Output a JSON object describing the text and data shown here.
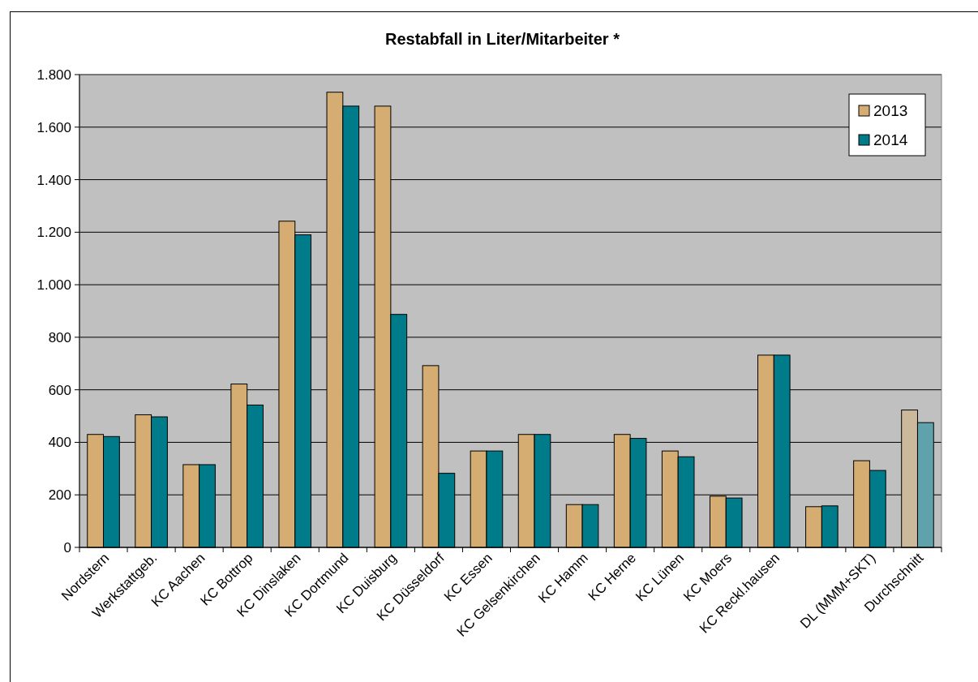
{
  "chart_data": {
    "type": "bar",
    "title": "Restabfall in Liter/Mitarbeiter *",
    "categories": [
      "Nordstern",
      "Werkstattgeb.",
      "KC Aachen",
      "KC Bottrop",
      "KC Dinslaken",
      "KC Dortmund",
      "KC Duisburg",
      "KC Düsseldorf",
      "KC Essen",
      "KC Gelsenkirchen",
      "KC Hamm",
      "KC Herne",
      "KC Lünen",
      "KC Moers",
      "KC Reckl.hausen",
      null,
      "DL (MMM+SKT)",
      "Durchschnitt"
    ],
    "series": [
      {
        "name": "2013",
        "color": "#d5ad72",
        "colors": [
          "#d5ad72",
          "#d5ad72",
          "#d5ad72",
          "#d5ad72",
          "#d5ad72",
          "#d5ad72",
          "#d5ad72",
          "#d5ad72",
          "#d5ad72",
          "#d5ad72",
          "#d5ad72",
          "#d5ad72",
          "#d5ad72",
          "#d5ad72",
          "#d5ad72",
          "#d5ad72",
          "#d5ad72",
          "#cbb99b"
        ],
        "values": [
          430,
          505,
          315,
          622,
          1242,
          1733,
          1680,
          692,
          367,
          430,
          163,
          430,
          367,
          195,
          732,
          155,
          330,
          523
        ]
      },
      {
        "name": "2014",
        "color": "#007b8a",
        "colors": [
          "#007b8a",
          "#007b8a",
          "#007b8a",
          "#007b8a",
          "#007b8a",
          "#007b8a",
          "#007b8a",
          "#007b8a",
          "#007b8a",
          "#007b8a",
          "#007b8a",
          "#007b8a",
          "#007b8a",
          "#007b8a",
          "#007b8a",
          "#007b8a",
          "#007b8a",
          "#5fa2ab"
        ],
        "values": [
          422,
          497,
          315,
          542,
          1190,
          1680,
          887,
          282,
          367,
          430,
          163,
          415,
          345,
          188,
          732,
          158,
          293,
          475
        ]
      }
    ],
    "ylim": [
      0,
      1800
    ],
    "yticks": [
      {
        "value": 0,
        "label": "0"
      },
      {
        "value": 200,
        "label": "200"
      },
      {
        "value": 400,
        "label": "400"
      },
      {
        "value": 600,
        "label": "600"
      },
      {
        "value": 800,
        "label": "800"
      },
      {
        "value": 1000,
        "label": "1.000"
      },
      {
        "value": 1200,
        "label": "1.200"
      },
      {
        "value": 1400,
        "label": "1.400"
      },
      {
        "value": 1600,
        "label": "1.600"
      },
      {
        "value": 1800,
        "label": "1.800"
      }
    ],
    "grid": "y",
    "legend": "top right"
  }
}
